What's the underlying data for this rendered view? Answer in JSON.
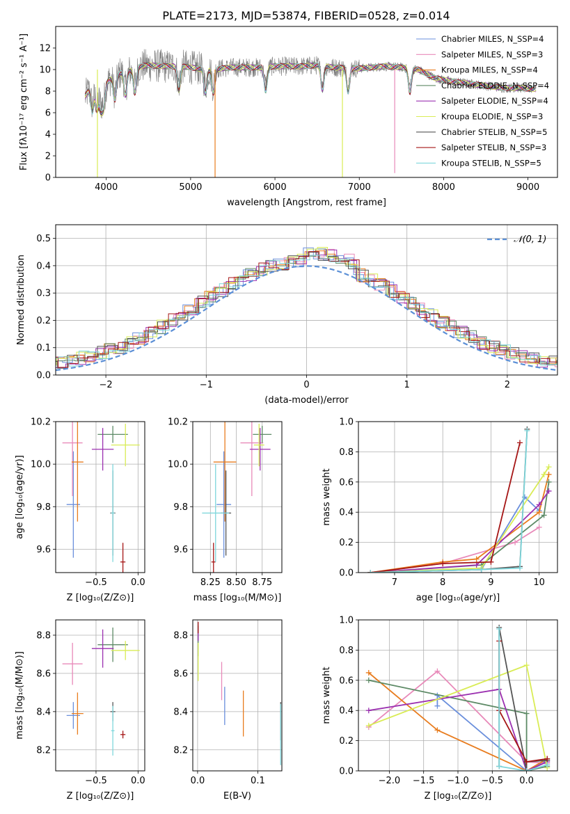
{
  "figure_title": "PLATE=2173, MJD=53874, FIBERID=0528, z=0.014",
  "colors": {
    "chabrier_miles": "#6a8fdc",
    "salpeter_miles": "#e889b9",
    "kroupa_miles": "#e87c1e",
    "chabrier_elodie": "#5d8a66",
    "salpeter_elodie": "#9b30b0",
    "kroupa_elodie": "#d9ec55",
    "chabrier_stelib": "#555555",
    "salpeter_stelib": "#a51515",
    "kroupa_stelib": "#7fd7dc",
    "gaussian": "#5b8fd6",
    "grid": "#b0b0b0"
  },
  "chart_data": [
    {
      "id": "spectrum",
      "type": "line",
      "xlabel": "wavelength [Angstrom, rest frame]",
      "ylabel": "Flux [fλ10⁻¹⁷ erg cm⁻² s⁻¹ A⁻¹]",
      "xlim": [
        3400,
        9350
      ],
      "ylim": [
        0,
        14
      ],
      "xticks": [
        "4000",
        "5000",
        "6000",
        "7000",
        "8000",
        "9000"
      ],
      "yticks": [
        "0",
        "2",
        "4",
        "6",
        "8",
        "10",
        "12"
      ],
      "grid": false,
      "legend_position": "top-right",
      "legend": [
        "Chabrier MILES, N_SSP=4",
        "Salpeter MILES, N_SSP=3",
        "Kroupa MILES, N_SSP=4",
        "Chabrier ELODIE, N_SSP=4",
        "Salpeter ELODIE, N_SSP=4",
        "Kroupa ELODIE, N_SSP=3",
        "Chabrier STELIB, N_SSP=5",
        "Salpeter STELIB, N_SSP=3",
        "Kroupa STELIB, N_SSP=5"
      ],
      "continuum": [
        [
          3750,
          7.5
        ],
        [
          3800,
          8.2
        ],
        [
          3900,
          8.6
        ],
        [
          4000,
          8.8
        ],
        [
          4100,
          9.4
        ],
        [
          4200,
          9.8
        ],
        [
          4300,
          9.9
        ],
        [
          4400,
          10.3
        ],
        [
          4500,
          10.4
        ],
        [
          4700,
          10.3
        ],
        [
          4900,
          10.3
        ],
        [
          5000,
          10.2
        ],
        [
          5200,
          10.0
        ],
        [
          5500,
          10.2
        ],
        [
          5800,
          10.2
        ],
        [
          6000,
          10.3
        ],
        [
          6300,
          10.3
        ],
        [
          6500,
          10.4
        ],
        [
          6700,
          10.2
        ],
        [
          7000,
          10.1
        ],
        [
          7300,
          10.3
        ],
        [
          7500,
          10.2
        ],
        [
          7700,
          10.0
        ],
        [
          7900,
          9.2
        ],
        [
          8100,
          8.9
        ],
        [
          8300,
          8.7
        ],
        [
          8500,
          8.5
        ],
        [
          8700,
          8.3
        ],
        [
          8900,
          8.3
        ],
        [
          9050,
          8.2
        ]
      ],
      "model_range": [
        3750,
        9100
      ]
    },
    {
      "id": "residuals",
      "type": "histogram",
      "xlabel": "(data-model)/error",
      "ylabel": "Normed distribution",
      "xlim": [
        -2.5,
        2.5
      ],
      "ylim": [
        0,
        0.55
      ],
      "xticks": [
        "−2",
        "−1",
        "0",
        "1",
        "2"
      ],
      "yticks": [
        "0.0",
        "0.1",
        "0.2",
        "0.3",
        "0.4",
        "0.5"
      ],
      "grid": true,
      "legend": [
        "𝒩(0, 1)"
      ],
      "legend_position": "top-right",
      "bin_width": 0.1,
      "reference": "normal(0,1)"
    },
    {
      "id": "age-vs-Z",
      "type": "scatter",
      "xlabel": "Z [log₁₀(Z/Z⊙)]",
      "ylabel": "age  [log₁₀(age/yr)]",
      "xlim": [
        -0.98,
        0.08
      ],
      "ylim": [
        9.49,
        10.2
      ],
      "xticks": [
        "−0.5",
        "0.0"
      ],
      "xtick_values": [
        -0.5,
        0.0
      ],
      "yticks": [
        "9.6",
        "9.8",
        "10.0",
        "10.2"
      ],
      "ytick_values": [
        9.6,
        9.8,
        10.0,
        10.2
      ],
      "grid": true,
      "points": [
        {
          "model": "chabrier_miles",
          "x": -0.77,
          "y": 9.81,
          "dx": 0.08,
          "dy": 0.25
        },
        {
          "model": "salpeter_miles",
          "x": -0.78,
          "y": 10.1,
          "dx": 0.12,
          "dy": 0.25
        },
        {
          "model": "kroupa_miles",
          "x": -0.72,
          "y": 10.01,
          "dx": 0.07,
          "dy": 0.28
        },
        {
          "model": "chabrier_elodie",
          "x": -0.3,
          "y": 10.14,
          "dx": 0.18,
          "dy": 0.04
        },
        {
          "model": "salpeter_elodie",
          "x": -0.42,
          "y": 10.07,
          "dx": 0.13,
          "dy": 0.1
        },
        {
          "model": "kroupa_elodie",
          "x": -0.15,
          "y": 10.09,
          "dx": 0.17,
          "dy": 0.1
        },
        {
          "model": "chabrier_stelib",
          "x": -0.3,
          "y": 9.77,
          "dx": 0.03,
          "dy": 0.2
        },
        {
          "model": "salpeter_stelib",
          "x": -0.18,
          "y": 9.54,
          "dx": 0.03,
          "dy": 0.09
        },
        {
          "model": "kroupa_stelib",
          "x": -0.3,
          "y": 9.77,
          "dx": 0.02,
          "dy": 0.23
        }
      ]
    },
    {
      "id": "age-vs-mass",
      "type": "scatter",
      "xlabel": "mass [log₁₀(M/M⊙)]",
      "ylabel": "",
      "xlim": [
        8.08,
        8.94
      ],
      "ylim": [
        9.49,
        10.2
      ],
      "xticks": [
        "8.25",
        "8.50",
        "8.75"
      ],
      "xtick_values": [
        8.25,
        8.5,
        8.75
      ],
      "yticks": [
        "9.6",
        "9.8",
        "10.0",
        "10.2"
      ],
      "ytick_values": [
        9.6,
        9.8,
        10.0,
        10.2
      ],
      "grid": true,
      "points": [
        {
          "model": "chabrier_miles",
          "x": 8.38,
          "y": 9.81,
          "dx": 0.07,
          "dy": 0.25
        },
        {
          "model": "salpeter_miles",
          "x": 8.65,
          "y": 10.1,
          "dx": 0.11,
          "dy": 0.25
        },
        {
          "model": "kroupa_miles",
          "x": 8.39,
          "y": 10.01,
          "dx": 0.11,
          "dy": 0.28
        },
        {
          "model": "chabrier_elodie",
          "x": 8.75,
          "y": 10.14,
          "dx": 0.09,
          "dy": 0.04
        },
        {
          "model": "salpeter_elodie",
          "x": 8.73,
          "y": 10.07,
          "dx": 0.1,
          "dy": 0.1
        },
        {
          "model": "kroupa_elodie",
          "x": 8.72,
          "y": 10.09,
          "dx": 0.05,
          "dy": 0.1
        },
        {
          "model": "chabrier_stelib",
          "x": 8.4,
          "y": 9.77,
          "dx": 0.05,
          "dy": 0.2
        },
        {
          "model": "salpeter_stelib",
          "x": 8.28,
          "y": 9.54,
          "dx": 0.02,
          "dy": 0.09
        },
        {
          "model": "kroupa_stelib",
          "x": 8.3,
          "y": 9.77,
          "dx": 0.13,
          "dy": 0.23
        }
      ]
    },
    {
      "id": "weight-vs-age",
      "type": "line",
      "xlabel": "age  [log₁₀(age/yr)]",
      "ylabel": "mass weight",
      "xlim": [
        6.25,
        10.38
      ],
      "ylim": [
        0,
        1
      ],
      "xticks": [
        "7",
        "8",
        "9",
        "10"
      ],
      "xtick_values": [
        7,
        8,
        9,
        10
      ],
      "yticks": [
        "0.0",
        "0.2",
        "0.4",
        "0.6",
        "0.8",
        "1.0"
      ],
      "ytick_values": [
        0,
        0.2,
        0.4,
        0.6,
        0.8,
        1.0
      ],
      "grid": true,
      "series": [
        {
          "model": "chabrier_miles",
          "x": [
            6.5,
            8.8,
            9.7,
            10.0
          ],
          "y": [
            0.0,
            0.02,
            0.5,
            0.41
          ]
        },
        {
          "model": "salpeter_miles",
          "x": [
            6.5,
            8.0,
            9.5,
            10.0
          ],
          "y": [
            0.0,
            0.06,
            0.2,
            0.3
          ]
        },
        {
          "model": "kroupa_miles",
          "x": [
            6.5,
            8.0,
            8.7,
            10.0,
            10.2
          ],
          "y": [
            0.0,
            0.07,
            0.09,
            0.4,
            0.65
          ]
        },
        {
          "model": "chabrier_elodie",
          "x": [
            6.5,
            8.8,
            10.1,
            10.2
          ],
          "y": [
            0.0,
            0.05,
            0.38,
            0.6
          ]
        },
        {
          "model": "salpeter_elodie",
          "x": [
            6.5,
            8.7,
            10.0,
            10.2
          ],
          "y": [
            0.0,
            0.05,
            0.45,
            0.54
          ]
        },
        {
          "model": "kroupa_elodie",
          "x": [
            6.5,
            8.8,
            10.1,
            10.2
          ],
          "y": [
            0.0,
            0.03,
            0.65,
            0.7
          ]
        },
        {
          "model": "chabrier_stelib",
          "x": [
            6.5,
            8.8,
            9.6,
            9.75
          ],
          "y": [
            0.0,
            0.02,
            0.04,
            0.95
          ]
        },
        {
          "model": "salpeter_stelib",
          "x": [
            6.5,
            8.0,
            9.0,
            9.6
          ],
          "y": [
            0.0,
            0.06,
            0.07,
            0.86
          ]
        },
        {
          "model": "kroupa_stelib",
          "x": [
            6.5,
            8.8,
            9.6,
            9.75
          ],
          "y": [
            0.0,
            0.02,
            0.03,
            0.94
          ]
        }
      ]
    },
    {
      "id": "mass-vs-Z",
      "type": "scatter",
      "xlabel": "Z [log₁₀(Z/Z⊙)]",
      "ylabel": "mass [log₁₀(M/M⊙)]",
      "xlim": [
        -0.98,
        0.08
      ],
      "ylim": [
        8.09,
        8.88
      ],
      "xticks": [
        "−0.5",
        "0.0"
      ],
      "xtick_values": [
        -0.5,
        0.0
      ],
      "yticks": [
        "8.2",
        "8.4",
        "8.6",
        "8.8"
      ],
      "ytick_values": [
        8.2,
        8.4,
        8.6,
        8.8
      ],
      "grid": true,
      "points": [
        {
          "model": "chabrier_miles",
          "x": -0.77,
          "y": 8.38,
          "dx": 0.08,
          "dy": 0.07
        },
        {
          "model": "salpeter_miles",
          "x": -0.78,
          "y": 8.65,
          "dx": 0.12,
          "dy": 0.11
        },
        {
          "model": "kroupa_miles",
          "x": -0.72,
          "y": 8.39,
          "dx": 0.07,
          "dy": 0.11
        },
        {
          "model": "chabrier_elodie",
          "x": -0.3,
          "y": 8.75,
          "dx": 0.18,
          "dy": 0.09
        },
        {
          "model": "salpeter_elodie",
          "x": -0.42,
          "y": 8.73,
          "dx": 0.13,
          "dy": 0.1
        },
        {
          "model": "kroupa_elodie",
          "x": -0.15,
          "y": 8.72,
          "dx": 0.17,
          "dy": 0.05
        },
        {
          "model": "chabrier_stelib",
          "x": -0.3,
          "y": 8.4,
          "dx": 0.03,
          "dy": 0.05
        },
        {
          "model": "salpeter_stelib",
          "x": -0.18,
          "y": 8.28,
          "dx": 0.03,
          "dy": 0.02
        },
        {
          "model": "kroupa_stelib",
          "x": -0.3,
          "y": 8.3,
          "dx": 0.02,
          "dy": 0.13
        }
      ]
    },
    {
      "id": "mass-vs-ebv",
      "type": "scatter",
      "xlabel": "E(B-V)",
      "ylabel": "",
      "xlim": [
        -0.008,
        0.14
      ],
      "ylim": [
        8.09,
        8.88
      ],
      "xticks": [
        "0.0",
        "0.1"
      ],
      "xtick_values": [
        0.0,
        0.1
      ],
      "yticks": [
        "8.2",
        "8.4",
        "8.6",
        "8.8"
      ],
      "ytick_values": [
        8.2,
        8.4,
        8.6,
        8.8
      ],
      "grid": true,
      "points": [
        {
          "model": "chabrier_miles",
          "x": 0.045,
          "y": 8.43,
          "dx": 0,
          "dy": 0.1
        },
        {
          "model": "salpeter_miles",
          "x": 0.04,
          "y": 8.56,
          "dx": 0,
          "dy": 0.1
        },
        {
          "model": "kroupa_miles",
          "x": 0.076,
          "y": 8.39,
          "dx": 0,
          "dy": 0.12
        },
        {
          "model": "chabrier_elodie",
          "x": 0.001,
          "y": 8.77,
          "dx": 0,
          "dy": 0.08
        },
        {
          "model": "salpeter_elodie",
          "x": 0.001,
          "y": 8.8,
          "dx": 0,
          "dy": 0.03
        },
        {
          "model": "kroupa_elodie",
          "x": 0.001,
          "y": 8.66,
          "dx": 0,
          "dy": 0.1
        },
        {
          "model": "chabrier_stelib",
          "x": 0.138,
          "y": 8.35,
          "dx": 0,
          "dy": 0.1
        },
        {
          "model": "salpeter_stelib",
          "x": 0.001,
          "y": 8.84,
          "dx": 0,
          "dy": 0.03
        },
        {
          "model": "kroupa_stelib",
          "x": 0.138,
          "y": 8.28,
          "dx": 0,
          "dy": 0.16
        }
      ]
    },
    {
      "id": "weight-vs-Z",
      "type": "line",
      "xlabel": "Z [log₁₀(Z/Z⊙)]",
      "ylabel": "mass weight",
      "xlim": [
        -2.45,
        0.45
      ],
      "ylim": [
        0,
        1
      ],
      "xticks": [
        "−2.0",
        "−1.5",
        "−1.0",
        "−0.5",
        "0.0"
      ],
      "xtick_values": [
        -2.0,
        -1.5,
        -1.0,
        -0.5,
        0.0
      ],
      "yticks": [
        "0.0",
        "0.2",
        "0.4",
        "0.6",
        "0.8",
        "1.0"
      ],
      "ytick_values": [
        0,
        0.2,
        0.4,
        0.6,
        0.8,
        1.0
      ],
      "grid": true,
      "series": [
        {
          "model": "chabrier_miles",
          "x": [
            -1.3,
            -1.3,
            0.0,
            0.3
          ],
          "y": [
            0.43,
            0.5,
            0.0,
            0.07
          ]
        },
        {
          "model": "salpeter_miles",
          "x": [
            -2.3,
            -1.3,
            0.0,
            0.3
          ],
          "y": [
            0.29,
            0.66,
            0.06,
            0.05
          ]
        },
        {
          "model": "kroupa_miles",
          "x": [
            -2.3,
            -1.3,
            0.0,
            0.3
          ],
          "y": [
            0.65,
            0.27,
            0.0,
            0.08
          ]
        },
        {
          "model": "chabrier_elodie",
          "x": [
            -2.3,
            0.0,
            0.0,
            0.3
          ],
          "y": [
            0.6,
            0.38,
            0.0,
            0.03
          ]
        },
        {
          "model": "salpeter_elodie",
          "x": [
            -2.3,
            -0.4,
            0.0,
            0.3
          ],
          "y": [
            0.4,
            0.54,
            0.0,
            0.06
          ]
        },
        {
          "model": "kroupa_elodie",
          "x": [
            -2.3,
            0.0,
            0.3
          ],
          "y": [
            0.3,
            0.7,
            0.02
          ]
        },
        {
          "model": "chabrier_stelib",
          "x": [
            -0.4,
            -0.4,
            0.0,
            0.0,
            0.3
          ],
          "y": [
            0.03,
            0.95,
            0.0,
            0.06,
            0.07
          ]
        },
        {
          "model": "salpeter_stelib",
          "x": [
            -0.4,
            -0.4,
            0.0,
            0.3
          ],
          "y": [
            0.86,
            0.4,
            0.06,
            0.08
          ]
        },
        {
          "model": "kroupa_stelib",
          "x": [
            -0.4,
            -0.4,
            0.0,
            0.3
          ],
          "y": [
            0.94,
            0.03,
            0.0,
            0.04
          ]
        }
      ]
    }
  ]
}
